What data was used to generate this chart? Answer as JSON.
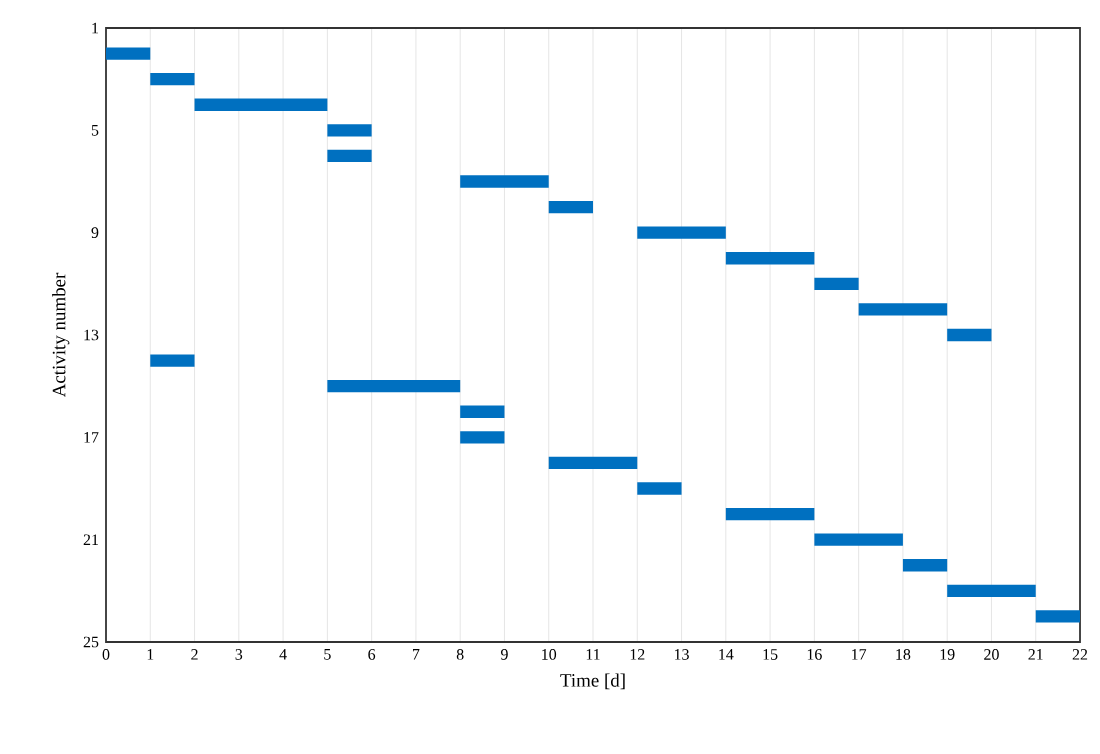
{
  "chart_data": {
    "type": "bar",
    "orientation": "horizontal",
    "xlabel": "Time [d]",
    "ylabel": "Activity number",
    "x": [
      2,
      3,
      4,
      5,
      6,
      7,
      8,
      9,
      10,
      11,
      12,
      13,
      14,
      15,
      16,
      17,
      18,
      19,
      20,
      21,
      22,
      23,
      24
    ],
    "base": [
      0,
      1,
      2,
      5,
      5,
      8,
      10,
      12,
      14,
      16,
      17,
      19,
      1,
      5,
      8,
      8,
      10,
      12,
      14,
      16,
      18,
      19,
      21
    ],
    "values": [
      1,
      1,
      3,
      1,
      1,
      2,
      1,
      2,
      2,
      1,
      2,
      1,
      1,
      3,
      1,
      1,
      2,
      1,
      2,
      2,
      1,
      2,
      1
    ],
    "color": "#0070c0",
    "xlim": [
      0,
      22
    ],
    "xticks": [
      0,
      1,
      2,
      3,
      4,
      5,
      6,
      7,
      8,
      9,
      10,
      11,
      12,
      13,
      14,
      15,
      16,
      17,
      18,
      19,
      20,
      21,
      22
    ],
    "ylim": [
      25,
      1
    ],
    "yticks": [
      1,
      5,
      9,
      13,
      17,
      21,
      25
    ],
    "grid": "x"
  }
}
